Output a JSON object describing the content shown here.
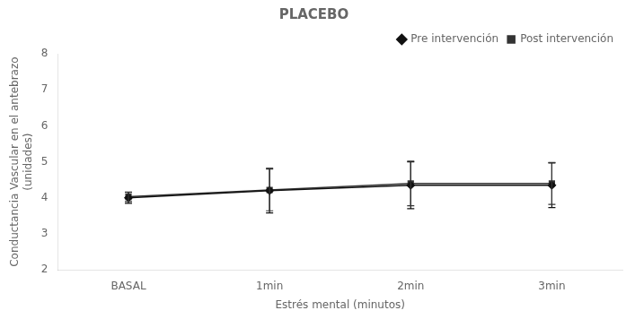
{
  "chart_data": {
    "type": "line",
    "title": "PLACEBO",
    "x_label": "Estrés mental (minutos)",
    "y_label": "Conductancia Vascular en el antebrazo\n(unidades)",
    "categories": [
      "BASAL",
      "1min",
      "2min",
      "3min"
    ],
    "series": [
      {
        "name": "Pre intervención",
        "color": "#111111",
        "marker": "diamond",
        "line_style": "solid",
        "values": [
          4.0,
          4.2,
          4.35,
          4.35
        ],
        "yerr": [
          0.15,
          0.62,
          0.65,
          0.62
        ]
      },
      {
        "name": "Post intervención",
        "color": "#333333",
        "marker": "square",
        "line_style": "solid",
        "values": [
          4.03,
          4.22,
          4.4,
          4.4
        ],
        "yerr": [
          0.13,
          0.58,
          0.62,
          0.58
        ]
      }
    ],
    "ylim": [
      2,
      8
    ],
    "yticks": [
      2,
      3,
      4,
      5,
      6,
      7,
      8
    ],
    "grid": false,
    "legend": "upper right"
  }
}
